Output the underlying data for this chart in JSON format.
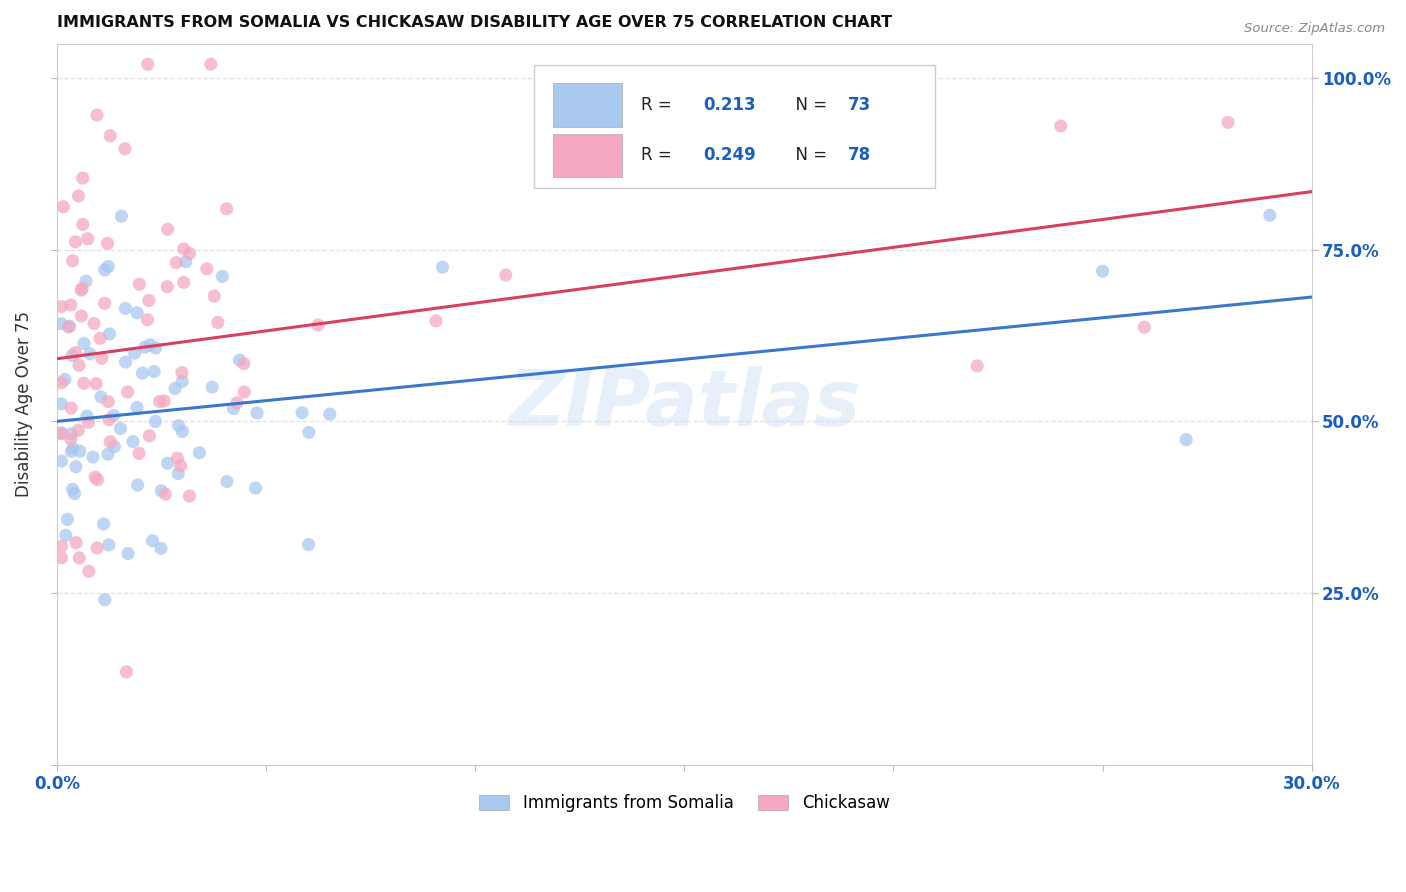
{
  "title": "IMMIGRANTS FROM SOMALIA VS CHICKASAW DISABILITY AGE OVER 75 CORRELATION CHART",
  "source": "Source: ZipAtlas.com",
  "ylabel": "Disability Age Over 75",
  "xlim": [
    0.0,
    0.3
  ],
  "ylim": [
    0.0,
    1.05
  ],
  "legend1_R": "0.213",
  "legend1_N": "73",
  "legend2_R": "0.249",
  "legend2_N": "78",
  "color_somalia": "#a8c8f0",
  "color_chickasaw": "#f5a8c0",
  "color_somalia_line": "#3a78c9",
  "color_chickasaw_line": "#d94060",
  "color_grid": "#e0e0e0",
  "color_tick_labels": "#1a5fc0",
  "watermark": "ZIPatlas",
  "seed": 12345
}
